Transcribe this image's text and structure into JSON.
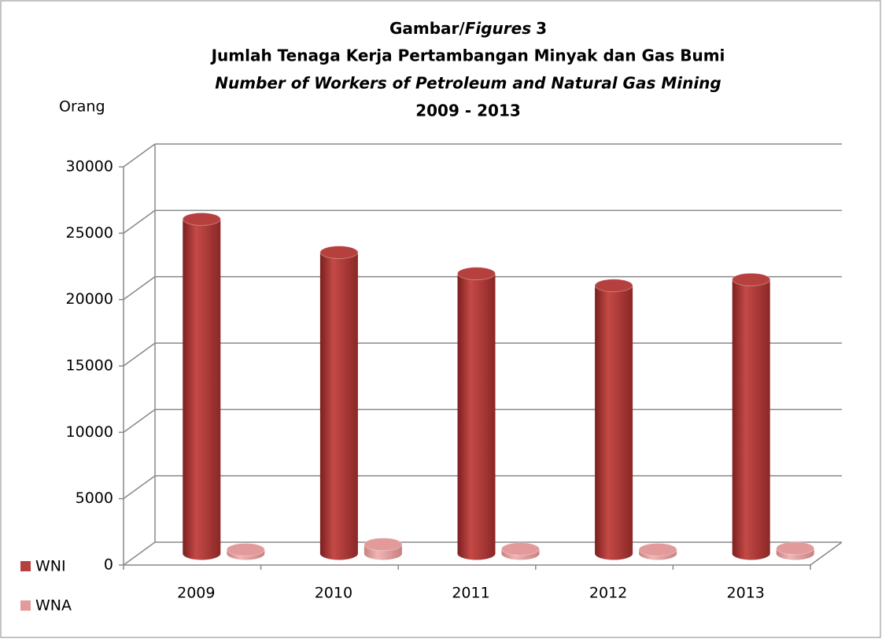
{
  "chart_data": {
    "type": "bar3d",
    "title": [
      "Gambar/",
      "Figures",
      "3"
    ],
    "subtitle": "Jumlah Tenaga Kerja Pertambangan Minyak dan Gas Bumi",
    "subtitle_en": "Number of Workers of Petroleum and Natural Gas Mining",
    "period": "2009 - 2013",
    "y_label": "Orang",
    "categories": [
      "2009",
      "2010",
      "2011",
      "2012",
      "2013"
    ],
    "series": [
      {
        "name": "WNI",
        "color": "#b5403e",
        "values": [
          25200,
          22700,
          21100,
          20200,
          20650
        ]
      },
      {
        "name": "WNA",
        "color": "#e29a9a",
        "values": [
          300,
          700,
          350,
          300,
          400
        ]
      }
    ],
    "ylim": [
      0,
      30000
    ],
    "yticks": [
      0,
      5000,
      10000,
      15000,
      20000,
      25000,
      30000
    ],
    "grid": true,
    "legend": "bottom-left"
  }
}
